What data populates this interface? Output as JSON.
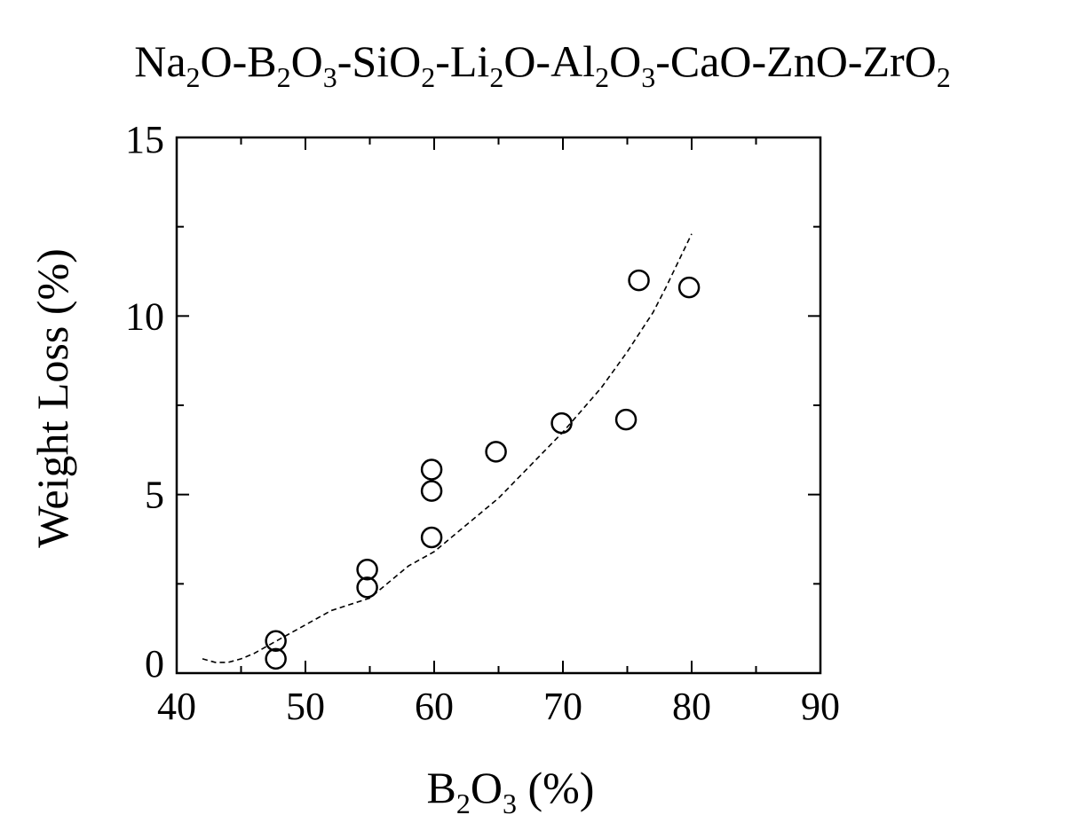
{
  "chart_data": {
    "type": "scatter",
    "title": {
      "segments": [
        {
          "t": "Na"
        },
        {
          "t": "2",
          "sub": true
        },
        {
          "t": "O-B"
        },
        {
          "t": "2",
          "sub": true
        },
        {
          "t": "O"
        },
        {
          "t": "3",
          "sub": true
        },
        {
          "t": "-SiO"
        },
        {
          "t": "2",
          "sub": true
        },
        {
          "t": "-Li"
        },
        {
          "t": "2",
          "sub": true
        },
        {
          "t": "O-Al"
        },
        {
          "t": "2",
          "sub": true
        },
        {
          "t": "O"
        },
        {
          "t": "3",
          "sub": true
        },
        {
          "t": "-CaO-ZnO-ZrO"
        },
        {
          "t": "2",
          "sub": true
        }
      ]
    },
    "xlabel": {
      "segments": [
        {
          "t": "B"
        },
        {
          "t": "2",
          "sub": true
        },
        {
          "t": "O"
        },
        {
          "t": "3",
          "sub": true
        },
        {
          "t": " (%)"
        }
      ]
    },
    "ylabel": "Weight Loss (%)",
    "xlim": [
      40,
      90
    ],
    "ylim": [
      0,
      15
    ],
    "x_ticks": [
      "40",
      "50",
      "60",
      "70",
      "80",
      "90"
    ],
    "y_ticks": [
      "0",
      "5",
      "10",
      "15"
    ],
    "grid": false,
    "series": [
      {
        "marker": "open-circle",
        "points": [
          {
            "x": 47.7,
            "y": 0.9
          },
          {
            "x": 47.7,
            "y": 0.4
          },
          {
            "x": 54.8,
            "y": 2.9
          },
          {
            "x": 54.8,
            "y": 2.4
          },
          {
            "x": 59.8,
            "y": 5.7
          },
          {
            "x": 59.8,
            "y": 5.1
          },
          {
            "x": 59.8,
            "y": 3.8
          },
          {
            "x": 64.8,
            "y": 6.2
          },
          {
            "x": 69.9,
            "y": 7.0
          },
          {
            "x": 74.9,
            "y": 7.1
          },
          {
            "x": 75.9,
            "y": 11.0
          },
          {
            "x": 79.8,
            "y": 10.8
          }
        ]
      },
      {
        "line_style": "dashed",
        "points": [
          {
            "x": 42,
            "y": 0.4
          },
          {
            "x": 43,
            "y": 0.3
          },
          {
            "x": 44,
            "y": 0.3
          },
          {
            "x": 45,
            "y": 0.4
          },
          {
            "x": 46,
            "y": 0.55
          },
          {
            "x": 48,
            "y": 0.95
          },
          {
            "x": 50,
            "y": 1.35
          },
          {
            "x": 52,
            "y": 1.75
          },
          {
            "x": 55,
            "y": 2.1
          },
          {
            "x": 58,
            "y": 3.0
          },
          {
            "x": 60,
            "y": 3.4
          },
          {
            "x": 65,
            "y": 4.9
          },
          {
            "x": 70,
            "y": 6.75
          },
          {
            "x": 73,
            "y": 8.0
          },
          {
            "x": 75,
            "y": 9.0
          },
          {
            "x": 77,
            "y": 10.1
          },
          {
            "x": 78,
            "y": 10.8
          },
          {
            "x": 80,
            "y": 12.3
          }
        ]
      }
    ]
  }
}
